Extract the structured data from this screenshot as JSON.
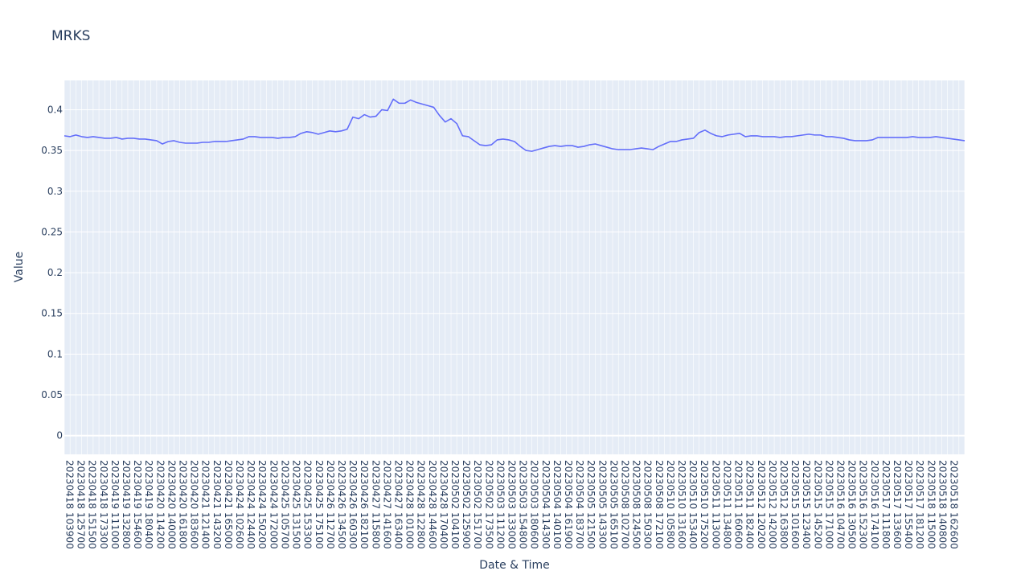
{
  "chart_data": {
    "type": "line",
    "title": "MRKS",
    "xlabel": "Date & Time",
    "ylabel": "Value",
    "ylim": [
      -0.023,
      0.436
    ],
    "yticks": [
      0,
      0.05,
      0.1,
      0.15,
      0.2,
      0.25,
      0.3,
      0.35,
      0.4
    ],
    "grid": true,
    "x_tick_labels": [
      "20230418 103900",
      "20230418 125700",
      "20230418 151500",
      "20230418 173300",
      "20230419 111000",
      "20230419 132800",
      "20230419 154600",
      "20230419 180400",
      "20230420 114200",
      "20230420 140000",
      "20230420 161800",
      "20230420 183600",
      "20230421 121400",
      "20230421 143200",
      "20230421 165000",
      "20230424 102600",
      "20230424 124400",
      "20230424 150200",
      "20230424 172000",
      "20230425 105700",
      "20230425 131500",
      "20230425 153300",
      "20230425 175100",
      "20230426 112700",
      "20230426 134500",
      "20230426 160300",
      "20230426 182100",
      "20230427 115800",
      "20230427 141600",
      "20230427 163400",
      "20230428 101000",
      "20230428 122800",
      "20230428 144600",
      "20230428 170400",
      "20230502 104100",
      "20230502 125900",
      "20230502 151700",
      "20230502 173500",
      "20230503 111200",
      "20230503 133000",
      "20230503 154800",
      "20230503 180600",
      "20230504 114300",
      "20230504 140100",
      "20230504 161900",
      "20230504 183700",
      "20230505 121500",
      "20230505 143300",
      "20230505 165100",
      "20230508 102700",
      "20230508 124500",
      "20230508 150300",
      "20230508 172100",
      "20230510 105800",
      "20230510 131600",
      "20230510 153400",
      "20230510 175200",
      "20230511 113000",
      "20230511 134800",
      "20230511 160600",
      "20230511 182400",
      "20230512 120200",
      "20230512 142000",
      "20230512 163800",
      "20230515 101600",
      "20230515 123400",
      "20230515 145200",
      "20230515 171000",
      "20230516 104700",
      "20230516 130500",
      "20230516 152300",
      "20230516 174100",
      "20230517 111800",
      "20230517 133600",
      "20230517 155400",
      "20230517 181200",
      "20230518 115000",
      "20230518 140800",
      "20230518 162600"
    ],
    "series": [
      {
        "color": "#636efa",
        "values": [
          0.368,
          0.367,
          0.369,
          0.367,
          0.366,
          0.367,
          0.366,
          0.365,
          0.365,
          0.366,
          0.364,
          0.365,
          0.365,
          0.364,
          0.364,
          0.363,
          0.362,
          0.358,
          0.361,
          0.362,
          0.36,
          0.359,
          0.359,
          0.359,
          0.36,
          0.36,
          0.361,
          0.361,
          0.361,
          0.362,
          0.363,
          0.364,
          0.367,
          0.367,
          0.366,
          0.366,
          0.366,
          0.365,
          0.366,
          0.366,
          0.367,
          0.371,
          0.373,
          0.372,
          0.37,
          0.372,
          0.374,
          0.373,
          0.374,
          0.376,
          0.391,
          0.389,
          0.394,
          0.391,
          0.392,
          0.4,
          0.399,
          0.413,
          0.408,
          0.408,
          0.412,
          0.409,
          0.407,
          0.405,
          0.403,
          0.393,
          0.385,
          0.389,
          0.383,
          0.368,
          0.367,
          0.362,
          0.357,
          0.356,
          0.357,
          0.363,
          0.364,
          0.363,
          0.361,
          0.355,
          0.35,
          0.349,
          0.351,
          0.353,
          0.355,
          0.356,
          0.355,
          0.356,
          0.356,
          0.354,
          0.355,
          0.357,
          0.358,
          0.356,
          0.354,
          0.352,
          0.351,
          0.351,
          0.351,
          0.352,
          0.353,
          0.352,
          0.351,
          0.355,
          0.358,
          0.361,
          0.361,
          0.363,
          0.364,
          0.365,
          0.372,
          0.375,
          0.371,
          0.368,
          0.367,
          0.369,
          0.37,
          0.371,
          0.367,
          0.368,
          0.368,
          0.367,
          0.367,
          0.367,
          0.366,
          0.367,
          0.367,
          0.368,
          0.369,
          0.37,
          0.369,
          0.369,
          0.367,
          0.367,
          0.366,
          0.365,
          0.363,
          0.362,
          0.362,
          0.362,
          0.363,
          0.366,
          0.366,
          0.366,
          0.366,
          0.366,
          0.366,
          0.367,
          0.366,
          0.366,
          0.366,
          0.367,
          0.366,
          0.365,
          0.364,
          0.363,
          0.362
        ]
      }
    ]
  }
}
